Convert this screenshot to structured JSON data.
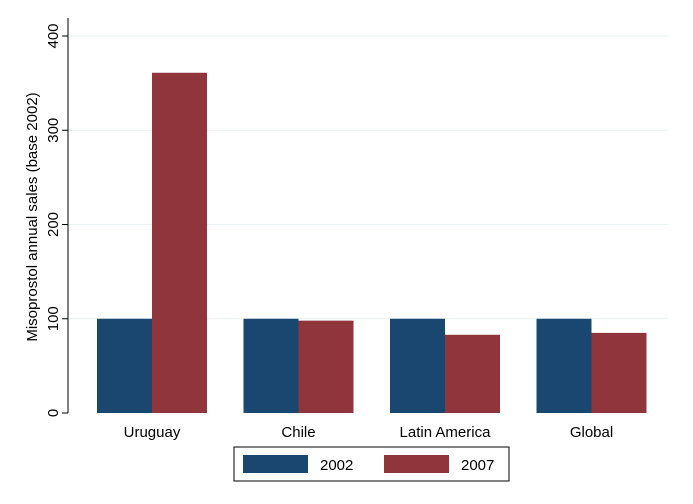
{
  "chart_data": {
    "type": "bar",
    "ylabel": "Misoprostol annual sales (base 2002)",
    "xlabel": "",
    "ylim": [
      0,
      400
    ],
    "yticks": [
      0,
      100,
      200,
      300,
      400
    ],
    "grid": true,
    "legend_position": "bottom",
    "categories": [
      "Uruguay",
      "Chile",
      "Latin America",
      "Global"
    ],
    "series": [
      {
        "name": "2002",
        "color": "#1a476f",
        "values": [
          100,
          100,
          100,
          100
        ]
      },
      {
        "name": "2007",
        "color": "#90353b",
        "values": [
          361,
          98,
          83,
          85
        ]
      }
    ]
  }
}
